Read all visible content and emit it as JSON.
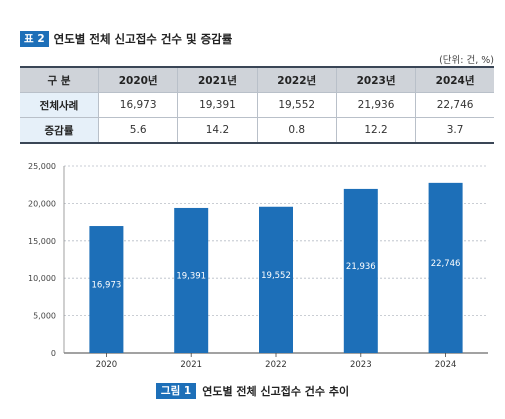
{
  "table_caption": {
    "badge": "표 2",
    "title": "연도별 전체 신고접수 건수 및 증감률"
  },
  "unit_note": "(단위: 건, %)",
  "table": {
    "header_label": "구 분",
    "columns": [
      "2020년",
      "2021년",
      "2022년",
      "2023년",
      "2024년"
    ],
    "rows": [
      {
        "label": "전체사례",
        "values": [
          "16,973",
          "19,391",
          "19,552",
          "21,936",
          "22,746"
        ]
      },
      {
        "label": "증감률",
        "values": [
          "5.6",
          "14.2",
          "0.8",
          "12.2",
          "3.7"
        ]
      }
    ]
  },
  "chart_data": {
    "type": "bar",
    "categories": [
      "2020",
      "2021",
      "2022",
      "2023",
      "2024"
    ],
    "values": [
      16973,
      19391,
      19552,
      21936,
      22746
    ],
    "data_labels": [
      "16,973",
      "19,391",
      "19,552",
      "21,936",
      "22,746"
    ],
    "ylim": [
      0,
      25000
    ],
    "yticks": [
      0,
      5000,
      10000,
      15000,
      20000,
      25000
    ],
    "ytick_labels": [
      "0",
      "5,000",
      "10,000",
      "15,000",
      "20,000",
      "25,000"
    ],
    "grid": true,
    "bar_color": "#1d6fb8"
  },
  "figure_caption": {
    "badge": "그림 1",
    "title": "연도별 전체 신고접수 건수 추이"
  }
}
